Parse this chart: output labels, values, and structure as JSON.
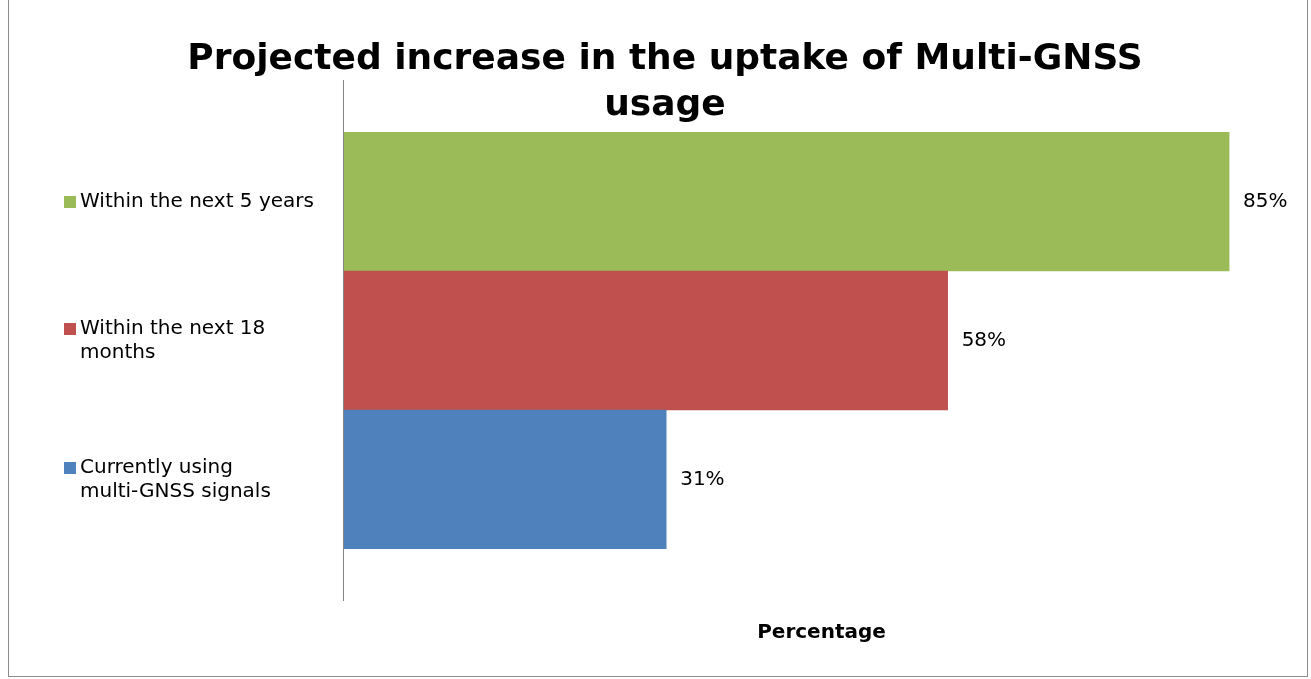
{
  "chart_data": {
    "type": "bar",
    "orientation": "horizontal",
    "title": "Projected increase in the uptake of Multi-GNSS usage",
    "xlabel": "Percentage",
    "grid": false,
    "categories": [
      "Within the next 5 years",
      "Within the next 18 months",
      "Currently using multi-GNSS signals"
    ],
    "values": [
      85,
      58,
      31
    ],
    "colors": [
      "#9bbb59",
      "#c0504d",
      "#4f81bd"
    ],
    "value_labels": [
      "85%",
      "58%",
      "31%"
    ]
  }
}
